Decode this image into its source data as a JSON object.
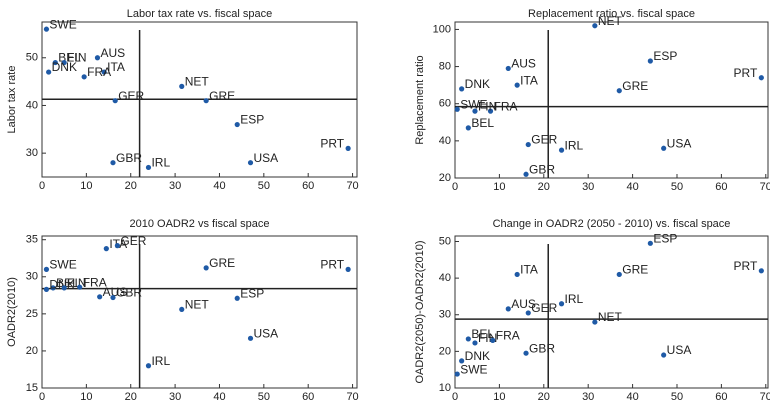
{
  "chart_data": [
    {
      "type": "scatter",
      "title": "Labor tax rate vs. fiscal space",
      "y_label": "Labor tax rate",
      "color": "#1f5aa6",
      "labels": [
        "SWE",
        "BEL",
        "FIN",
        "DNK",
        "AUS",
        "ITA",
        "FRA",
        "GER",
        "NET",
        "GRE",
        "ESP",
        "PRT",
        "GBR",
        "IRL",
        "USA"
      ],
      "x": [
        1,
        3,
        5,
        1.5,
        12.5,
        14,
        9.5,
        16.5,
        31.5,
        37,
        44,
        69,
        16,
        24,
        47
      ],
      "y": [
        56,
        49,
        49,
        47,
        50,
        47,
        46,
        41,
        44,
        41,
        36,
        31,
        28,
        27,
        28
      ],
      "hline": 41.3,
      "vline": 22,
      "xlim": [
        0,
        71
      ],
      "ylim": [
        25,
        57.5
      ],
      "xticks": [
        0,
        10,
        20,
        30,
        40,
        50,
        60,
        70
      ],
      "yticks": [
        30,
        40,
        50
      ]
    },
    {
      "type": "scatter",
      "title": "Replacement ratio vs. fiscal space",
      "y_label": "Replacement ratio",
      "color": "#1f5aa6",
      "labels": [
        "NET",
        "ESP",
        "PRT",
        "AUS",
        "DNK",
        "ITA",
        "FRA",
        "SWE",
        "FIN",
        "GRE",
        "BEL",
        "GER",
        "IRL",
        "USA",
        "GBR"
      ],
      "x": [
        31.5,
        44,
        69,
        12,
        1.5,
        14,
        8,
        0.5,
        4.5,
        37,
        3,
        16.5,
        24,
        47,
        16
      ],
      "y": [
        102,
        83,
        74,
        79,
        68,
        70,
        56,
        57,
        56,
        67,
        47,
        38,
        35,
        36,
        22
      ],
      "hline": 58.4,
      "vline": 21,
      "xlim": [
        0,
        70.5
      ],
      "ylim": [
        20,
        104
      ],
      "xticks": [
        0,
        10,
        20,
        30,
        40,
        50,
        60,
        70
      ],
      "yticks": [
        20,
        40,
        60,
        80,
        100
      ]
    },
    {
      "type": "scatter",
      "title": "2010 OADR2 vs fiscal space",
      "y_label": "OADR2(2010)",
      "color": "#1f5aa6",
      "labels": [
        "SWE",
        "BEL",
        "DNK",
        "FIN",
        "FRA",
        "ITA",
        "GER",
        "AUS",
        "GBR",
        "GRE",
        "PRT",
        "ESP",
        "NET",
        "USA",
        "IRL"
      ],
      "x": [
        1,
        2.5,
        1,
        5,
        8.5,
        14.5,
        17,
        13,
        16,
        37,
        69,
        44,
        31.5,
        47,
        24
      ],
      "y": [
        31,
        28.5,
        28.3,
        28.5,
        28.6,
        33.8,
        34.2,
        27.3,
        27.2,
        31.2,
        31,
        27.1,
        25.6,
        21.7,
        18
      ],
      "hline": 28.4,
      "vline": 22,
      "xlim": [
        0,
        71
      ],
      "ylim": [
        15,
        35.5
      ],
      "xticks": [
        0,
        10,
        20,
        30,
        40,
        50,
        60,
        70
      ],
      "yticks": [
        15,
        20,
        25,
        30,
        35
      ]
    },
    {
      "type": "scatter",
      "title": "Change in OADR2 (2050 - 2010) vs. fiscal space",
      "y_label": "OADR2(2050)-OADR2(2010)",
      "color": "#1f5aa6",
      "labels": [
        "ESP",
        "PRT",
        "ITA",
        "GRE",
        "AUS",
        "GER",
        "IRL",
        "NET",
        "BEL",
        "FIN",
        "FRA",
        "GBR",
        "USA",
        "DNK",
        "SWE"
      ],
      "x": [
        44,
        69,
        14,
        37,
        12,
        16.5,
        24,
        31.5,
        3,
        4.5,
        8.5,
        16,
        47,
        1.5,
        0.5
      ],
      "y": [
        49.5,
        42,
        41,
        41,
        31.6,
        30.5,
        33,
        28,
        23.4,
        22.3,
        23,
        19.5,
        19,
        17.4,
        13.8
      ],
      "hline": 28.8,
      "vline": 21,
      "xlim": [
        0,
        70.5
      ],
      "ylim": [
        10,
        51.5
      ],
      "xticks": [
        0,
        10,
        20,
        30,
        40,
        50,
        60,
        70
      ],
      "yticks": [
        10,
        20,
        30,
        40,
        50
      ]
    }
  ]
}
